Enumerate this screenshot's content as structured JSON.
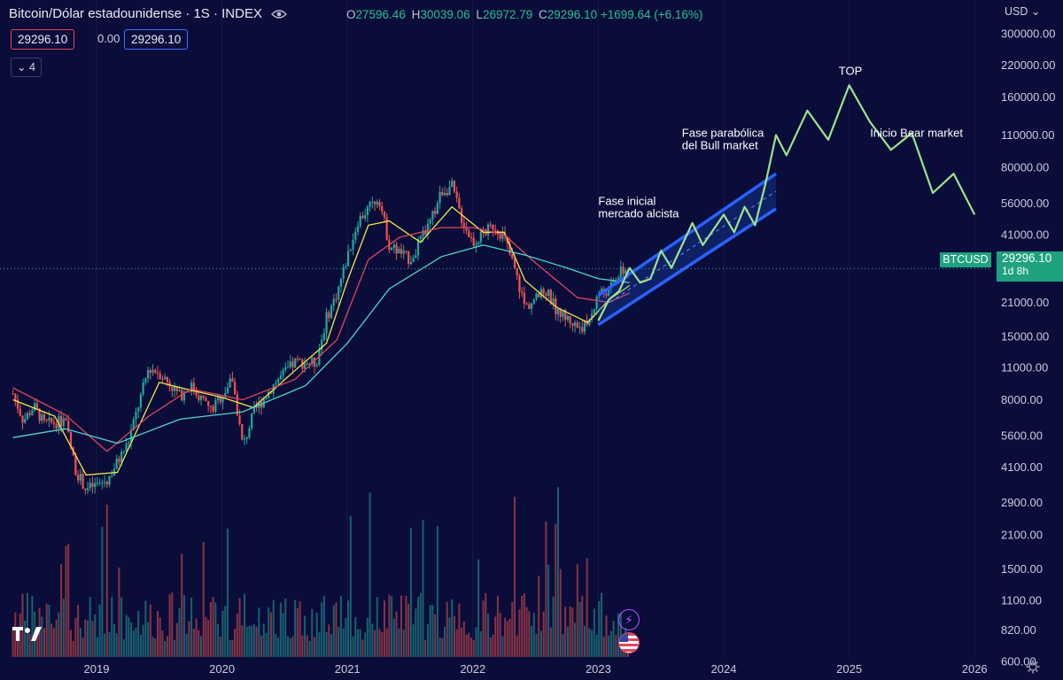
{
  "header": {
    "title": "Bitcoin/Dólar estadounidense · 1S · INDEX",
    "ohlc": [
      {
        "key": "O",
        "value": "27596.46"
      },
      {
        "key": "H",
        "value": "30039.06"
      },
      {
        "key": "L",
        "value": "26972.79"
      },
      {
        "key": "C",
        "value": "29296.10"
      }
    ],
    "change": "+1699.64 (+6.16%)"
  },
  "price_boxes": {
    "left": "29296.10",
    "spread": "0.00",
    "right": "29296.10"
  },
  "indicator_count": "4",
  "currency": "USD",
  "last_price": {
    "symbol": "BTCUSD",
    "price": "29296.10",
    "countdown": "1d 8h"
  },
  "colors": {
    "background": "#0a0d3a",
    "up": "#26a69a",
    "down": "#ef5350",
    "projection": "#9be38b",
    "channel": "#2962ff"
  },
  "chart_data": {
    "type": "candlestick",
    "title": "Bitcoin/Dólar estadounidense · 1S · INDEX",
    "y_scale": "log",
    "ylim": [
      460,
      390000
    ],
    "y_ticks": [
      "300000.00",
      "220000.00",
      "160000.00",
      "110000.00",
      "80000.00",
      "56000.00",
      "41000.00",
      "29296.10",
      "21000.00",
      "15000.00",
      "11000.00",
      "8000.00",
      "5600.00",
      "4100.00",
      "2900.00",
      "2100.00",
      "1500.00",
      "1100.00",
      "820.00",
      "600.00"
    ],
    "x_ticks": [
      "2019",
      "2020",
      "2021",
      "2022",
      "2023",
      "2024",
      "2025",
      "2026"
    ],
    "price_path": [
      [
        "2018-05",
        8500
      ],
      [
        "2018-06",
        6500
      ],
      [
        "2018-07",
        7500
      ],
      [
        "2018-08",
        6300
      ],
      [
        "2018-10",
        6500
      ],
      [
        "2018-11",
        4000
      ],
      [
        "2018-12",
        3300
      ],
      [
        "2019-02",
        3600
      ],
      [
        "2019-04",
        5200
      ],
      [
        "2019-06",
        11000
      ],
      [
        "2019-07",
        10500
      ],
      [
        "2019-09",
        8300
      ],
      [
        "2019-10",
        9200
      ],
      [
        "2019-12",
        7200
      ],
      [
        "2020-02",
        9800
      ],
      [
        "2020-03",
        5000
      ],
      [
        "2020-04",
        7000
      ],
      [
        "2020-06",
        9400
      ],
      [
        "2020-08",
        11600
      ],
      [
        "2020-10",
        11500
      ],
      [
        "2020-11",
        18000
      ],
      [
        "2020-12",
        23000
      ],
      [
        "2021-01",
        33000
      ],
      [
        "2021-02",
        47000
      ],
      [
        "2021-04",
        60000
      ],
      [
        "2021-05",
        37000
      ],
      [
        "2021-07",
        32000
      ],
      [
        "2021-09",
        47000
      ],
      [
        "2021-10",
        63000
      ],
      [
        "2021-11",
        66000
      ],
      [
        "2021-12",
        47000
      ],
      [
        "2022-01",
        38000
      ],
      [
        "2022-03",
        45000
      ],
      [
        "2022-04",
        40000
      ],
      [
        "2022-05",
        29000
      ],
      [
        "2022-06",
        20000
      ],
      [
        "2022-08",
        23500
      ],
      [
        "2022-09",
        19500
      ],
      [
        "2022-11",
        16500
      ],
      [
        "2022-12",
        16800
      ],
      [
        "2023-01",
        23000
      ],
      [
        "2023-02",
        23500
      ],
      [
        "2023-03",
        28000
      ],
      [
        "2023-04",
        29296.1
      ]
    ],
    "moving_averages": [
      {
        "color": "#f2e84b",
        "values": [
          [
            "2018-05",
            8000
          ],
          [
            "2018-09",
            6800
          ],
          [
            "2018-12",
            3800
          ],
          [
            "2019-03",
            3900
          ],
          [
            "2019-07",
            9500
          ],
          [
            "2019-10",
            8800
          ],
          [
            "2020-01",
            8200
          ],
          [
            "2020-04",
            7400
          ],
          [
            "2020-08",
            10700
          ],
          [
            "2020-11",
            14000
          ],
          [
            "2021-01",
            26000
          ],
          [
            "2021-03",
            45000
          ],
          [
            "2021-05",
            47000
          ],
          [
            "2021-08",
            38000
          ],
          [
            "2021-11",
            54000
          ],
          [
            "2022-02",
            42000
          ],
          [
            "2022-04",
            42000
          ],
          [
            "2022-06",
            26000
          ],
          [
            "2022-09",
            20000
          ],
          [
            "2022-12",
            17200
          ],
          [
            "2023-02",
            21500
          ],
          [
            "2023-04",
            24800
          ]
        ]
      },
      {
        "color": "#e0455a",
        "values": [
          [
            "2018-05",
            9000
          ],
          [
            "2018-10",
            6900
          ],
          [
            "2019-02",
            4800
          ],
          [
            "2019-06",
            6800
          ],
          [
            "2019-10",
            8900
          ],
          [
            "2020-03",
            8000
          ],
          [
            "2020-08",
            9800
          ],
          [
            "2020-12",
            14500
          ],
          [
            "2021-03",
            32000
          ],
          [
            "2021-06",
            40000
          ],
          [
            "2021-10",
            44000
          ],
          [
            "2022-01",
            44000
          ],
          [
            "2022-04",
            41000
          ],
          [
            "2022-07",
            31000
          ],
          [
            "2022-11",
            22000
          ],
          [
            "2023-02",
            21000
          ],
          [
            "2023-04",
            23000
          ]
        ]
      },
      {
        "color": "#4fd6c9",
        "values": [
          [
            "2018-05",
            5500
          ],
          [
            "2018-10",
            6000
          ],
          [
            "2019-03",
            5200
          ],
          [
            "2019-09",
            6600
          ],
          [
            "2020-03",
            7100
          ],
          [
            "2020-09",
            9200
          ],
          [
            "2021-01",
            14000
          ],
          [
            "2021-05",
            24000
          ],
          [
            "2021-10",
            33000
          ],
          [
            "2022-02",
            37000
          ],
          [
            "2022-06",
            33500
          ],
          [
            "2022-10",
            29500
          ],
          [
            "2023-01",
            26500
          ],
          [
            "2023-04",
            25500
          ]
        ]
      }
    ],
    "projection": [
      [
        "2023-01",
        17500
      ],
      [
        "2023-02",
        21500
      ],
      [
        "2023-03",
        23500
      ],
      [
        "2023-04",
        29500
      ],
      [
        "2023-05",
        25500
      ],
      [
        "2023-06",
        26500
      ],
      [
        "2023-07",
        35000
      ],
      [
        "2023-08",
        29500
      ],
      [
        "2023-10",
        46000
      ],
      [
        "2023-11",
        37000
      ],
      [
        "2024-01",
        50000
      ],
      [
        "2024-02",
        42000
      ],
      [
        "2024-03",
        54000
      ],
      [
        "2024-04",
        45000
      ],
      [
        "2024-05",
        68000
      ],
      [
        "2024-06",
        110000
      ],
      [
        "2024-07",
        90000
      ],
      [
        "2024-09",
        140000
      ],
      [
        "2024-11",
        105000
      ],
      [
        "2025-01",
        180000
      ],
      [
        "2025-03",
        125000
      ],
      [
        "2025-05",
        95000
      ],
      [
        "2025-07",
        112000
      ],
      [
        "2025-09",
        62000
      ],
      [
        "2025-11",
        75000
      ],
      [
        "2026-01",
        50000
      ]
    ],
    "channel": {
      "upper": [
        [
          "2023-01",
          22500
        ],
        [
          "2024-06",
          75000
        ]
      ],
      "lower": [
        [
          "2023-01",
          16800
        ],
        [
          "2024-06",
          53000
        ]
      ]
    },
    "annotations": [
      {
        "text": "Fase inicial\nmercado alcista",
        "x": "2023-01",
        "y": 55000
      },
      {
        "text": "Fase parabólica\ndel Bull market",
        "x": "2023-09",
        "y": 108000
      },
      {
        "text": "TOP",
        "x": "2024-12",
        "y": 200000
      },
      {
        "text": "Inicio Bear market",
        "x": "2025-03",
        "y": 108000
      }
    ]
  }
}
